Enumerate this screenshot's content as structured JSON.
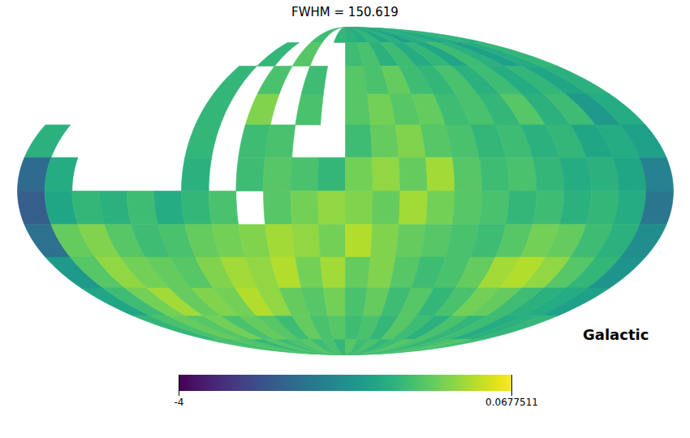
{
  "chart_data": {
    "type": "heatmap",
    "title": "FWHM = 150.619",
    "annotation": "Galactic",
    "color": "viridis",
    "tick_labels": false,
    "lon_edges": [
      180,
      165,
      150,
      135,
      120,
      105,
      90,
      75,
      60,
      45,
      30,
      15,
      0,
      -15,
      -30,
      -45,
      -60,
      -75,
      -90,
      -105,
      -120,
      -135,
      -150,
      -165,
      -180
    ],
    "lat_edges": [
      90,
      75,
      60,
      45,
      30,
      15,
      0,
      -15,
      -30,
      -45,
      -60,
      -75,
      -90
    ],
    "cells": [
      [
        null,
        null,
        null,
        null,
        null,
        null,
        null,
        null,
        null,
        -1.2,
        null,
        -1.3,
        -1.4,
        -1.5,
        -1.3,
        -1.6,
        -1.4,
        -1.7,
        -1.5,
        -1.4,
        -1.6,
        -1.5,
        -1.3,
        -1.4
      ],
      [
        null,
        null,
        null,
        null,
        null,
        null,
        null,
        -1.3,
        null,
        -1.0,
        null,
        null,
        -1.2,
        -1.1,
        -1.4,
        -1.2,
        -1.5,
        -1.3,
        -1.6,
        -1.2,
        -1.4,
        -1.7,
        -1.5,
        -1.3
      ],
      [
        null,
        null,
        null,
        null,
        null,
        null,
        -1.3,
        null,
        -1.1,
        null,
        -1.2,
        null,
        -1.0,
        -1.1,
        -0.9,
        -1.2,
        -1.3,
        -1.1,
        -1.4,
        -1.2,
        -1.5,
        -1.3,
        -1.6,
        -1.4
      ],
      [
        null,
        null,
        null,
        null,
        null,
        null,
        -1.3,
        null,
        -0.7,
        null,
        -1.1,
        null,
        -1.0,
        -0.8,
        -1.0,
        -0.9,
        -1.2,
        -1.1,
        -1.3,
        -1.0,
        -1.4,
        -1.2,
        -1.8,
        -1.5
      ],
      [
        -1.4,
        null,
        null,
        null,
        null,
        null,
        -1.3,
        null,
        -1.2,
        -1.1,
        null,
        null,
        -1.2,
        -0.9,
        -0.7,
        -1.0,
        -1.1,
        -1.3,
        -1.2,
        -1.4,
        -1.3,
        -1.6,
        -1.5,
        -1.7
      ],
      [
        -2.6,
        -1.5,
        null,
        null,
        null,
        null,
        -1.4,
        null,
        -1.2,
        -1.0,
        -1.1,
        -1.3,
        -0.8,
        -0.6,
        -0.9,
        -0.5,
        -1.0,
        -1.2,
        -1.1,
        -1.3,
        -1.5,
        -1.4,
        -1.6,
        -2.2
      ],
      [
        -2.8,
        -1.6,
        -1.3,
        -1.4,
        -1.2,
        -1.5,
        -1.3,
        -1.1,
        null,
        -1.0,
        -0.8,
        -0.6,
        -0.7,
        -0.9,
        -0.5,
        -0.8,
        -1.0,
        -1.1,
        -1.3,
        -1.2,
        -1.4,
        -1.3,
        -1.5,
        -2.4
      ],
      [
        -2.5,
        -0.9,
        -0.7,
        -1.0,
        -1.2,
        -1.1,
        -0.9,
        -0.8,
        -0.7,
        -0.5,
        -0.6,
        -0.8,
        -0.4,
        -0.7,
        -0.9,
        -1.0,
        -1.1,
        -1.2,
        -1.0,
        -0.8,
        -0.9,
        -1.2,
        -1.4,
        -2.0
      ],
      [
        -1.8,
        -1.0,
        -0.6,
        -0.8,
        -0.9,
        -1.0,
        -0.7,
        -0.5,
        -0.6,
        -0.4,
        -0.8,
        -0.5,
        -0.9,
        -0.7,
        -1.0,
        -1.2,
        -1.1,
        -0.9,
        -0.5,
        -0.4,
        -0.6,
        -1.0,
        -1.3,
        -1.9
      ],
      [
        -1.6,
        -1.2,
        -0.8,
        -0.5,
        -0.9,
        -0.7,
        -0.8,
        -0.4,
        -0.6,
        -0.9,
        -1.0,
        -0.8,
        -1.1,
        -0.9,
        -1.2,
        -1.0,
        -1.3,
        -1.1,
        -0.8,
        -0.9,
        -1.2,
        -1.4,
        -1.5,
        -1.7
      ],
      [
        -1.3,
        -1.1,
        -0.9,
        -1.0,
        -0.8,
        -1.1,
        -0.9,
        -1.0,
        -1.2,
        -0.9,
        -1.1,
        -1.0,
        -1.2,
        -1.1,
        -1.3,
        -1.0,
        -1.2,
        -1.4,
        -1.1,
        -1.3,
        -1.2,
        -1.5,
        -1.4,
        -1.3
      ],
      [
        -1.1,
        -1.2,
        -1.0,
        -1.1,
        -1.3,
        -1.0,
        -1.2,
        -1.1,
        -1.0,
        -1.2,
        -1.1,
        -1.3,
        -1.0,
        -1.2,
        -1.1,
        -1.3,
        -1.2,
        -1.0,
        -1.1,
        -1.3,
        -1.2,
        -1.1,
        -1.0,
        -1.2
      ]
    ],
    "colorbar": {
      "range": [
        -4,
        0.0677511
      ],
      "ticks": [
        -4,
        0.0677511
      ]
    }
  }
}
